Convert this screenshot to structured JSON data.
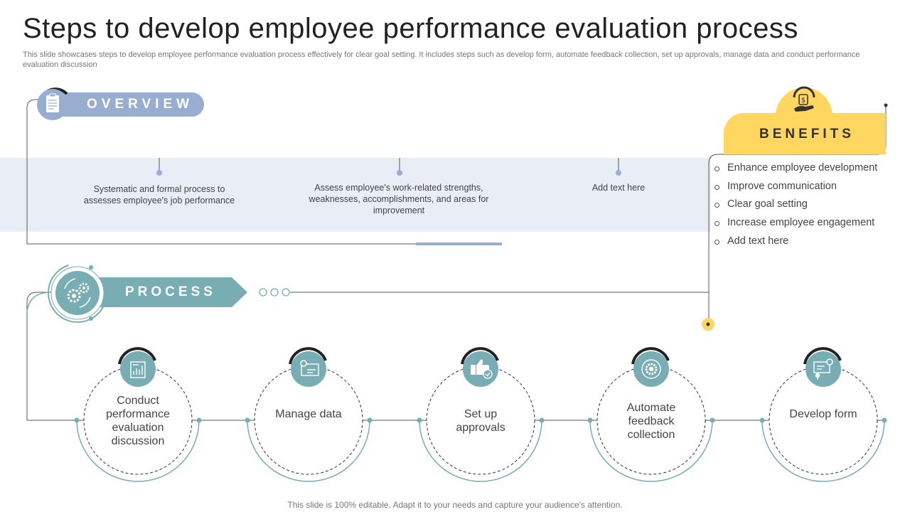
{
  "title": "Steps to develop employee performance evaluation process",
  "subtitle": "This slide showcases steps to develop employee performance evaluation process effectively for  clear goal setting. It includes steps such as develop form, automate feedback collection, set up approvals, manage data and conduct performance evaluation discussion",
  "overview": {
    "label": "OVERVIEW",
    "icon": "clipboard-icon",
    "points": [
      "Systematic and formal process to assesses employee's job performance",
      "Assess employee's work-related  strengths, weaknesses, accomplishments, and areas for improvement",
      "Add text here"
    ]
  },
  "benefits": {
    "label": "BENEFITS",
    "icon": "hand-money-icon",
    "items": [
      "Enhance employee development",
      "Improve communication",
      "Clear goal setting",
      "Increase employee engagement",
      "Add text here"
    ]
  },
  "process": {
    "label": "PROCESS",
    "icon": "gears-icon",
    "steps": [
      {
        "label": "Conduct performance evaluation discussion",
        "icon": "report-chart-icon"
      },
      {
        "label": "Manage data",
        "icon": "data-settings-icon"
      },
      {
        "label": "Set up approvals",
        "icon": "thumbs-up-check-icon"
      },
      {
        "label": "Automate feedback collection",
        "icon": "automation-gear-icon"
      },
      {
        "label": "Develop form",
        "icon": "form-presentation-icon"
      }
    ]
  },
  "colors": {
    "overview_accent": "#97aed0",
    "benefits_accent": "#ffd760",
    "process_accent": "#78adb4",
    "band": "#e9edf5"
  },
  "footer": "This slide is 100% editable. Adapt it to your needs and capture your audience's attention."
}
